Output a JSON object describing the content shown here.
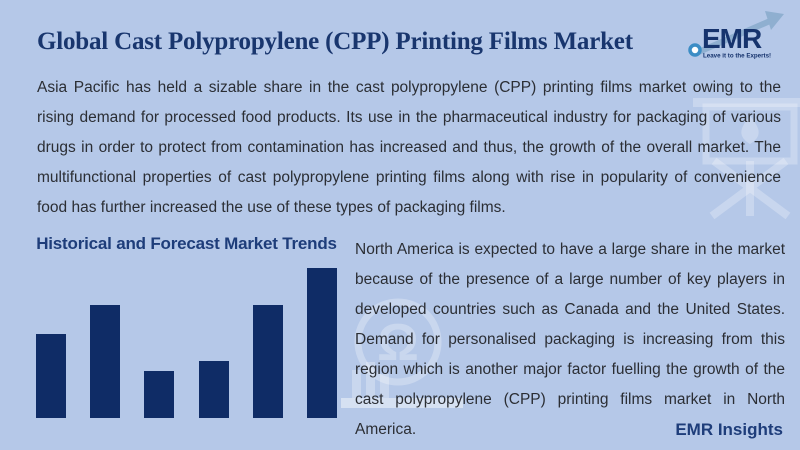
{
  "palette": {
    "background": "#b5c8e8",
    "navy": "#16336d",
    "bar_color": "#0f2c66",
    "body_text": "#2b2e34",
    "logo_arrow": "#8fafd0",
    "logo_circle": "#3c8dc5"
  },
  "header": {
    "title": "Global Cast Polypropylene (CPP) Printing Films Market",
    "logo": {
      "text": "EMR",
      "tagline": "Leave it to the Experts!"
    }
  },
  "intro_paragraph": "Asia Pacific has held a sizable share in the cast polypropylene (CPP) printing films market owing to the rising demand for processed food products. Its use in the pharmaceutical industry for packaging of various drugs in order to protect from contamination has increased and thus, the growth of the overall market. The multifunctional properties of cast polypropylene printing films along with rise in popularity of convenience food has further increased the use of these types of packaging films.",
  "chart_data": {
    "type": "bar",
    "title": "Historical and Forecast Market Trends",
    "values": [
      56,
      75,
      31,
      38,
      75,
      100
    ],
    "ylim": [
      0,
      100
    ],
    "grid": false,
    "axis_labels_shown": false,
    "bar_color": "#0f2c66"
  },
  "right_paragraph": "North America is expected to have a large share in the market because of the presence of a large number of key players in developed countries such as Canada and the United States. Demand for personalised packaging is increasing from this region which is another major factor fuelling the growth of the cast polypropylene (CPP) printing films market in North America.",
  "footer": {
    "label": "EMR Insights"
  },
  "decorations": [
    "presentation-board-watermark",
    "research-omega-watermark"
  ]
}
